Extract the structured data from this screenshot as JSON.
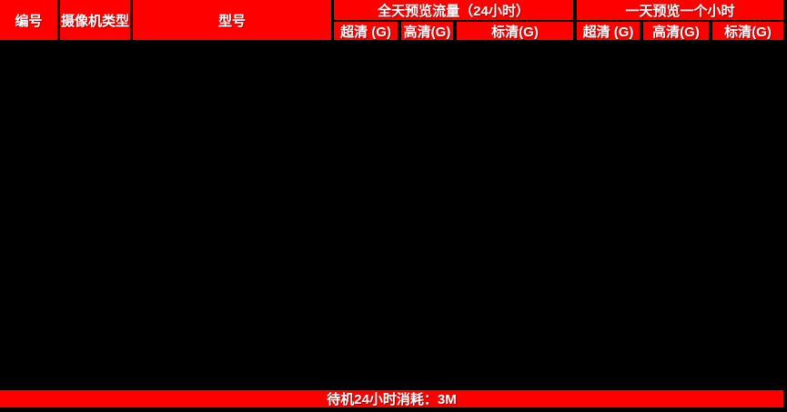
{
  "colors": {
    "header_red": "#FF0000",
    "background_black": "#000000",
    "text_white": "#FFFFFF"
  },
  "header": {
    "columns": [
      {
        "label": "编号"
      },
      {
        "label": "摄像机类型"
      },
      {
        "label": "型号"
      }
    ],
    "groups": [
      {
        "title": "全天预览流量（24小时）",
        "subcolumns": [
          "超清 (G)",
          "高清(G)",
          "标清(G)"
        ]
      },
      {
        "title": "一天预览一个小时",
        "subcolumns": [
          "超清 (G)",
          "高清(G)",
          "标清(G)"
        ]
      }
    ]
  },
  "body": {
    "rows": []
  },
  "footer": {
    "standby_text": "待机24小时消耗：3M"
  }
}
